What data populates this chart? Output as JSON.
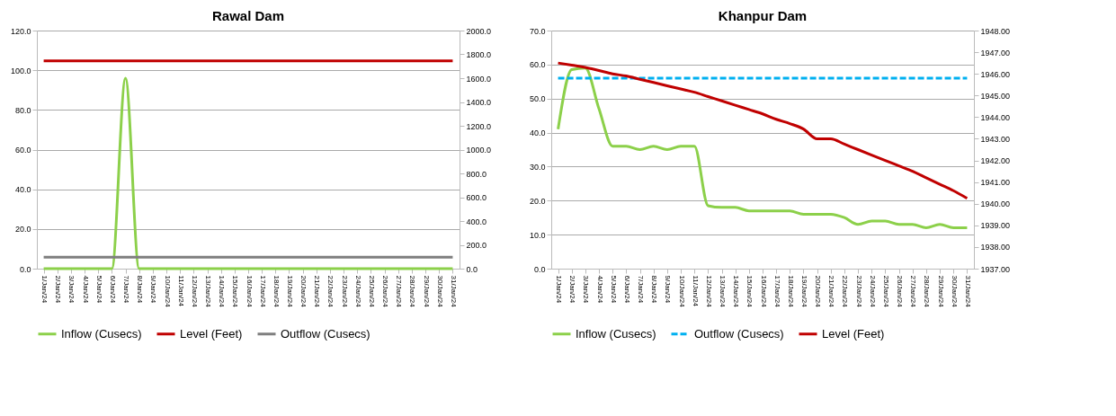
{
  "chart_data": [
    {
      "type": "line",
      "title": "Rawal Dam",
      "categories": [
        "1/Jan/24",
        "2/Jan/24",
        "3/Jan/24",
        "4/Jan/24",
        "5/Jan/24",
        "6/Jan/24",
        "7/Jan/24",
        "8/Jan/24",
        "9/Jan/24",
        "10/Jan/24",
        "11/Jan/24",
        "12/Jan/24",
        "13/Jan/24",
        "14/Jan/24",
        "15/Jan/24",
        "16/Jan/24",
        "17/Jan/24",
        "18/Jan/24",
        "19/Jan/24",
        "20/Jan/24",
        "21/Jan/24",
        "22/Jan/24",
        "23/Jan/24",
        "24/Jan/24",
        "25/Jan/24",
        "26/Jan/24",
        "27/Jan/24",
        "28/Jan/24",
        "29/Jan/24",
        "30/Jan/24",
        "31/Jan/24"
      ],
      "series": [
        {
          "name": "Inflow (Cusecs)",
          "color": "#8cd04a",
          "values": [
            0,
            0,
            0,
            0,
            0,
            0,
            96,
            0,
            0,
            0,
            0,
            0,
            0,
            0,
            0,
            0,
            0,
            0,
            0,
            0,
            0,
            0,
            0,
            0,
            0,
            0,
            0,
            0,
            0,
            0,
            0
          ]
        },
        {
          "name": "Level (Feet)",
          "color": "#c00000",
          "axis": "y2",
          "values": [
            1745,
            1745,
            1745,
            1745,
            1745,
            1745,
            1745,
            1745,
            1745,
            1745,
            1745,
            1745,
            1745,
            1745,
            1745,
            1745,
            1745,
            1745,
            1745,
            1745,
            1745,
            1745,
            1745,
            1745,
            1745,
            1745,
            1745,
            1745,
            1745,
            1745,
            1745
          ]
        },
        {
          "name": "Outflow (Cusecs)",
          "color": "#7f7f7f",
          "values": [
            5.8,
            5.8,
            5.8,
            5.8,
            5.8,
            5.8,
            5.8,
            5.8,
            5.8,
            5.8,
            5.8,
            5.8,
            5.8,
            5.8,
            5.8,
            5.8,
            5.8,
            5.8,
            5.8,
            5.8,
            5.8,
            5.8,
            5.8,
            5.8,
            5.8,
            5.8,
            5.8,
            5.8,
            5.8,
            5.8,
            5.8
          ]
        }
      ],
      "ylim": [
        0,
        120
      ],
      "yticks": [
        {
          "value": 0,
          "label": "0.0"
        },
        {
          "value": 20,
          "label": "20.0"
        },
        {
          "value": 40,
          "label": "40.0"
        },
        {
          "value": 60,
          "label": "60.0"
        },
        {
          "value": 80,
          "label": "80.0"
        },
        {
          "value": 100,
          "label": "100.0"
        },
        {
          "value": 120,
          "label": "120.0"
        }
      ],
      "y2lim": [
        0,
        2000
      ],
      "y2ticks": [
        {
          "value": 0,
          "label": "0.0"
        },
        {
          "value": 200,
          "label": "200.0"
        },
        {
          "value": 400,
          "label": "400.0"
        },
        {
          "value": 600,
          "label": "600.0"
        },
        {
          "value": 800,
          "label": "800.0"
        },
        {
          "value": 1000,
          "label": "1000.0"
        },
        {
          "value": 1200,
          "label": "1200.0"
        },
        {
          "value": 1400,
          "label": "1400.0"
        },
        {
          "value": 1600,
          "label": "1600.0"
        },
        {
          "value": 1800,
          "label": "1800.0"
        },
        {
          "value": 2000,
          "label": "2000.0"
        }
      ],
      "grid": "y",
      "legend": "bottom"
    },
    {
      "type": "line",
      "title": "Khanpur Dam",
      "categories": [
        "1/Jan/24",
        "2/Jan/24",
        "3/Jan/24",
        "4/Jan/24",
        "5/Jan/24",
        "6/Jan/24",
        "7/Jan/24",
        "8/Jan/24",
        "9/Jan/24",
        "10/Jan/24",
        "11/Jan/24",
        "12/Jan/24",
        "13/Jan/24",
        "14/Jan/24",
        "15/Jan/24",
        "16/Jan/24",
        "17/Jan/24",
        "18/Jan/24",
        "19/Jan/24",
        "20/Jan/24",
        "21/Jan/24",
        "22/Jan/24",
        "23/Jan/24",
        "24/Jan/24",
        "25/Jan/24",
        "26/Jan/24",
        "27/Jan/24",
        "28/Jan/24",
        "29/Jan/24",
        "30/Jan/24",
        "31/Jan/24"
      ],
      "series": [
        {
          "name": "Inflow (Cusecs)",
          "color": "#8cd04a",
          "values": [
            41,
            58.5,
            59,
            47,
            36,
            36,
            35,
            36,
            35,
            36,
            36,
            18.5,
            18,
            18,
            17,
            17,
            17,
            17,
            16,
            16,
            16,
            15,
            13,
            14,
            14,
            13,
            13,
            12,
            13,
            12,
            12
          ]
        },
        {
          "name": "Outflow (Cusecs)",
          "color": "#00b0f0",
          "line_style": "dashed",
          "values": [
            56,
            56,
            56,
            56,
            56,
            56,
            56,
            56,
            56,
            56,
            56,
            56,
            56,
            56,
            56,
            56,
            56,
            56,
            56,
            56,
            56,
            56,
            56,
            56,
            56,
            56,
            56,
            56,
            56,
            56,
            56
          ]
        },
        {
          "name": "Level (Feet)",
          "color": "#c00000",
          "axis": "y2",
          "values": [
            1946.5,
            1946.4,
            1946.3,
            1946.15,
            1946.0,
            1945.9,
            1945.75,
            1945.6,
            1945.45,
            1945.3,
            1945.15,
            1944.95,
            1944.75,
            1944.55,
            1944.35,
            1944.15,
            1943.9,
            1943.7,
            1943.45,
            1943.0,
            1943.0,
            1942.75,
            1942.5,
            1942.25,
            1942.0,
            1941.75,
            1941.5,
            1941.2,
            1940.9,
            1940.6,
            1940.25
          ]
        }
      ],
      "ylim": [
        0,
        70
      ],
      "yticks": [
        {
          "value": 0,
          "label": "0.0"
        },
        {
          "value": 10,
          "label": "10.0"
        },
        {
          "value": 20,
          "label": "20.0"
        },
        {
          "value": 30,
          "label": "30.0"
        },
        {
          "value": 40,
          "label": "40.0"
        },
        {
          "value": 50,
          "label": "50.0"
        },
        {
          "value": 60,
          "label": "60.0"
        },
        {
          "value": 70,
          "label": "70.0"
        }
      ],
      "y2lim": [
        1937,
        1948
      ],
      "y2ticks": [
        {
          "value": 1937,
          "label": "1937.00"
        },
        {
          "value": 1938,
          "label": "1938.00"
        },
        {
          "value": 1939,
          "label": "1939.00"
        },
        {
          "value": 1940,
          "label": "1940.00"
        },
        {
          "value": 1941,
          "label": "1941.00"
        },
        {
          "value": 1942,
          "label": "1942.00"
        },
        {
          "value": 1943,
          "label": "1943.00"
        },
        {
          "value": 1944,
          "label": "1944.00"
        },
        {
          "value": 1945,
          "label": "1945.00"
        },
        {
          "value": 1946,
          "label": "1946.00"
        },
        {
          "value": 1947,
          "label": "1947.00"
        },
        {
          "value": 1948,
          "label": "1948.00"
        }
      ],
      "grid": "y",
      "legend": "bottom"
    }
  ]
}
